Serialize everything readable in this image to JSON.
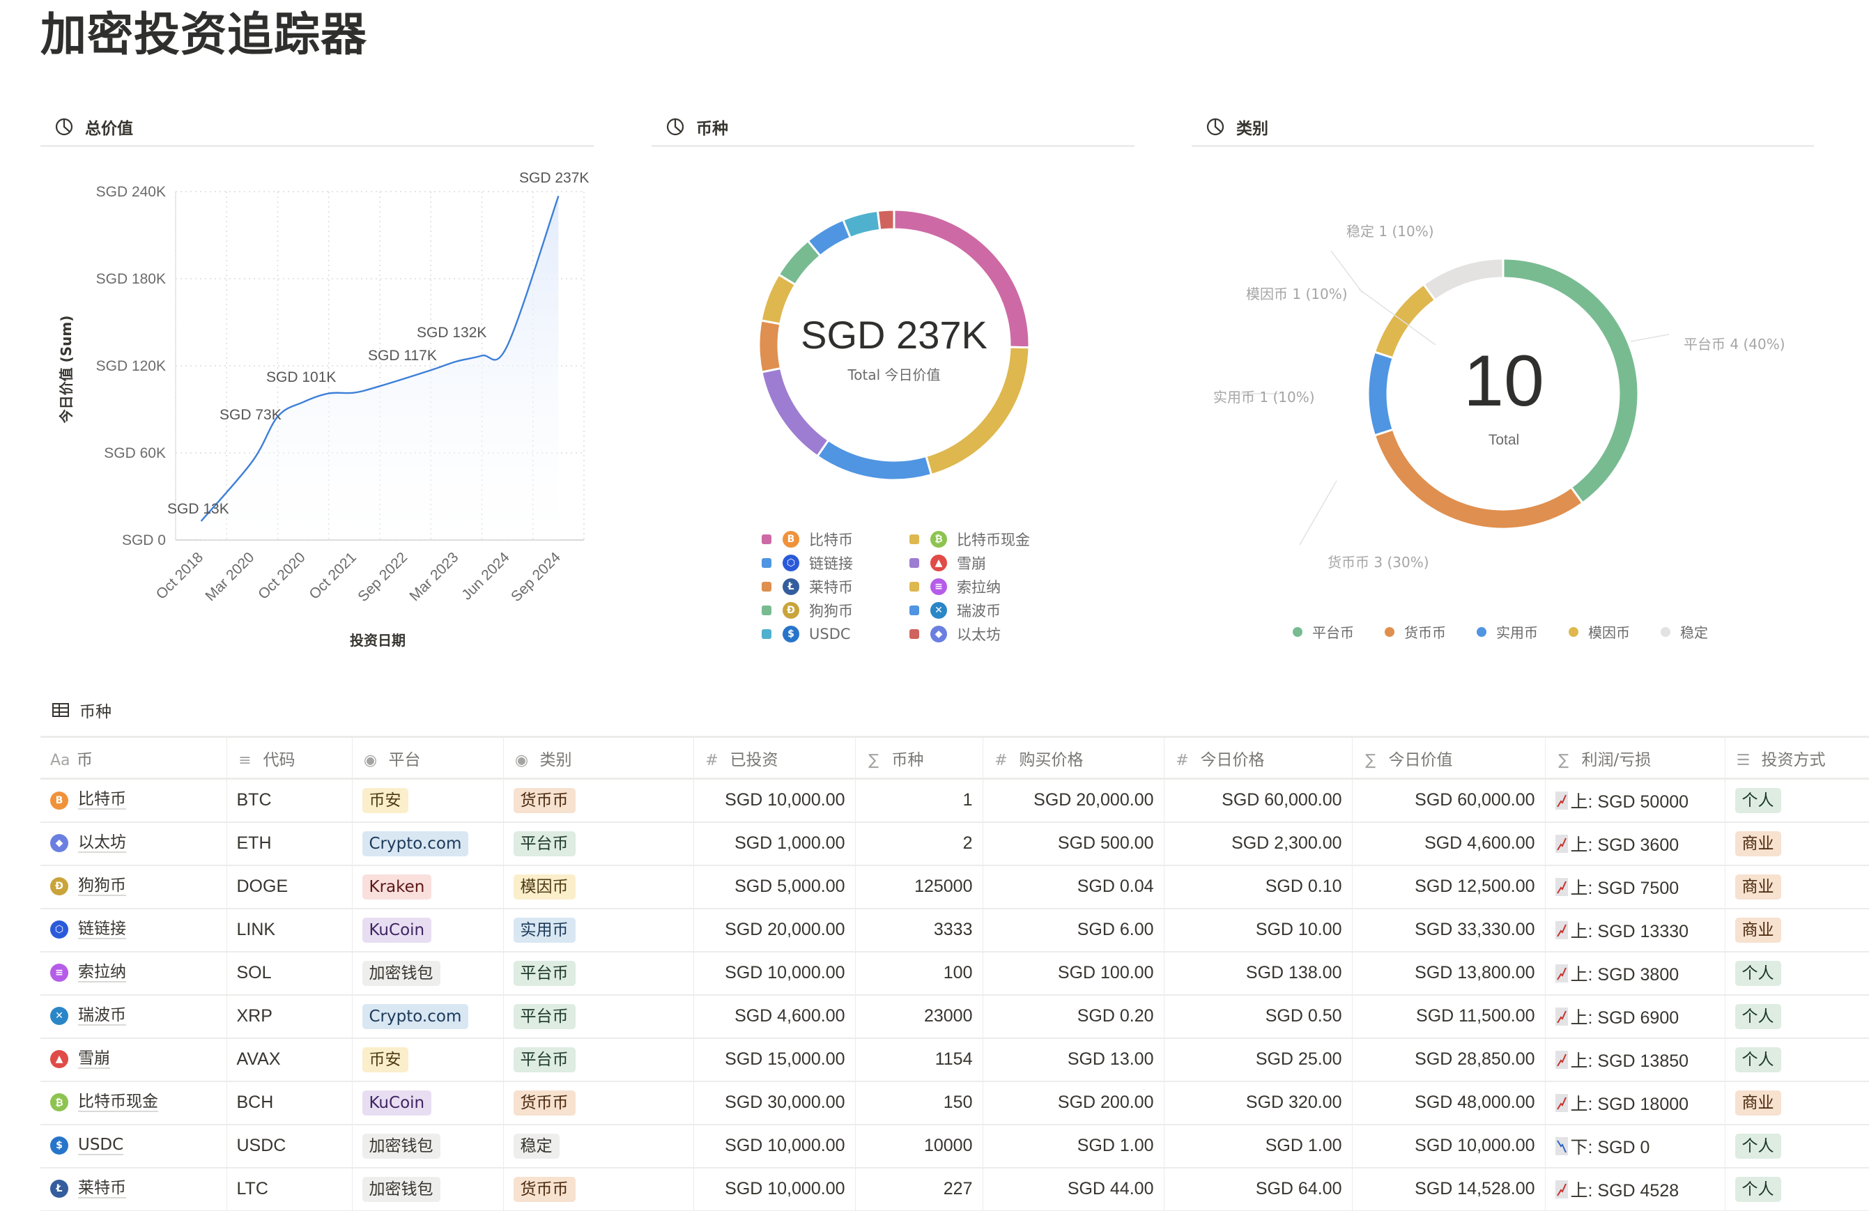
{
  "page": {
    "title": "加密投资追踪器"
  },
  "panels": {
    "total_value": {
      "title": "总价值"
    },
    "coins": {
      "title": "币种",
      "center_value": "SGD 237K",
      "center_label": "Total 今日价值"
    },
    "category": {
      "title": "类别",
      "center_value": "10",
      "center_label": "Total"
    }
  },
  "chart_data": [
    {
      "type": "area",
      "title": "总价值",
      "xlabel": "投资日期",
      "ylabel": "今日价值 (Sum)",
      "categories": [
        "Oct 2018",
        "Mar 2020",
        "Oct 2020",
        "Oct 2021",
        "Sep 2022",
        "Mar 2023",
        "Jun 2024",
        "Sep 2024"
      ],
      "values": [
        13000,
        73000,
        101000,
        101000,
        117000,
        132000,
        132000,
        237000
      ],
      "point_labels": [
        "SGD 13K",
        "SGD 73K",
        "SGD 101K",
        "SGD 117K",
        "SGD 132K",
        "SGD 237K"
      ],
      "yticks": [
        "SGD 0",
        "SGD 60K",
        "SGD 120K",
        "SGD 180K",
        "SGD 240K"
      ],
      "ylim": [
        0,
        240000
      ],
      "grid": true,
      "line_color": "#3d7fd8"
    },
    {
      "type": "pie",
      "title": "币种",
      "donut": true,
      "total_label": "SGD 237K",
      "sub_label": "Total 今日价值",
      "slices": [
        {
          "label": "比特币",
          "value": 60000,
          "color": "#cd6aa5"
        },
        {
          "label": "比特币现金",
          "value": 48000,
          "color": "#deb74e"
        },
        {
          "label": "链链接",
          "value": 33330,
          "color": "#4f95e2"
        },
        {
          "label": "雪崩",
          "value": 28850,
          "color": "#9d7dd1"
        },
        {
          "label": "莱特币",
          "value": 14528,
          "color": "#df8f4f"
        },
        {
          "label": "索拉纳",
          "value": 13800,
          "color": "#deb74e"
        },
        {
          "label": "狗狗币",
          "value": 12500,
          "color": "#78bb91"
        },
        {
          "label": "瑞波币",
          "value": 11500,
          "color": "#4f95e2"
        },
        {
          "label": "USDC",
          "value": 10000,
          "color": "#4fb1ce"
        },
        {
          "label": "以太坊",
          "value": 4600,
          "color": "#d0635e"
        }
      ]
    },
    {
      "type": "pie",
      "title": "类别",
      "donut": true,
      "total_label": "10",
      "sub_label": "Total",
      "slices": [
        {
          "label": "平台币",
          "value": 4,
          "pct": "40%",
          "color": "#78bb91"
        },
        {
          "label": "货币币",
          "value": 3,
          "pct": "30%",
          "color": "#df8f4f"
        },
        {
          "label": "实用币",
          "value": 1,
          "pct": "10%",
          "color": "#4f95e2"
        },
        {
          "label": "模因币",
          "value": 1,
          "pct": "10%",
          "color": "#deb74e"
        },
        {
          "label": "稳定",
          "value": 1,
          "pct": "10%",
          "color": "#e3e2e0"
        }
      ],
      "slice_labels": [
        "平台币  4 (40%)",
        "货币币  3 (30%)",
        "实用币  1 (10%)",
        "模因币  1 (10%)",
        "稳定  1 (10%)"
      ]
    }
  ],
  "coin_legend": [
    {
      "label": "比特币",
      "color": "#cd6aa5",
      "icon_bg": "#f0923a",
      "glyph": "B"
    },
    {
      "label": "比特币现金",
      "color": "#deb74e",
      "icon_bg": "#8dc351",
      "glyph": "₿"
    },
    {
      "label": "链链接",
      "color": "#4f95e2",
      "icon_bg": "#2a5ada",
      "glyph": "⬡"
    },
    {
      "label": "雪崩",
      "color": "#9d7dd1",
      "icon_bg": "#e04a47",
      "glyph": "▲"
    },
    {
      "label": "莱特币",
      "color": "#df8f4f",
      "icon_bg": "#345d9d",
      "glyph": "Ł"
    },
    {
      "label": "索拉纳",
      "color": "#deb74e",
      "icon_bg": "#b55ce8",
      "glyph": "≡"
    },
    {
      "label": "狗狗币",
      "color": "#78bb91",
      "icon_bg": "#c9a43a",
      "glyph": "Ð"
    },
    {
      "label": "瑞波币",
      "color": "#4f95e2",
      "icon_bg": "#2b86c7",
      "glyph": "✕"
    },
    {
      "label": "USDC",
      "color": "#4fb1ce",
      "icon_bg": "#2775ca",
      "glyph": "$"
    },
    {
      "label": "以太坊",
      "color": "#d0635e",
      "icon_bg": "#6a7fe0",
      "glyph": "◆"
    }
  ],
  "category_legend": [
    {
      "label": "平台币",
      "color": "#78bb91"
    },
    {
      "label": "货币币",
      "color": "#df8f4f"
    },
    {
      "label": "实用币",
      "color": "#4f95e2"
    },
    {
      "label": "模因币",
      "color": "#deb74e"
    },
    {
      "label": "稳定",
      "color": "#e3e2e0"
    }
  ],
  "table": {
    "title": "币种",
    "columns": [
      {
        "icon": "Aa",
        "label": "币"
      },
      {
        "icon": "≡",
        "label": "代码"
      },
      {
        "icon": "◉",
        "label": "平台"
      },
      {
        "icon": "◉",
        "label": "类别"
      },
      {
        "icon": "#",
        "label": "已投资"
      },
      {
        "icon": "∑",
        "label": "币种"
      },
      {
        "icon": "#",
        "label": "购买价格"
      },
      {
        "icon": "#",
        "label": "今日价格"
      },
      {
        "icon": "∑",
        "label": "今日价值"
      },
      {
        "icon": "∑",
        "label": "利润/亏损"
      },
      {
        "icon": "☰",
        "label": "投资方式"
      }
    ],
    "rows": [
      {
        "name": "比特币",
        "icon_bg": "#f0923a",
        "glyph": "B",
        "code": "BTC",
        "platform": "币安",
        "category": "货币币",
        "invested": "SGD 10,000.00",
        "coins": "1",
        "buy": "SGD 20,000.00",
        "today": "SGD 60,000.00",
        "value": "SGD 60,000.00",
        "pl_dir": "up",
        "pl": "上: SGD 50000",
        "method": "个人"
      },
      {
        "name": "以太坊",
        "icon_bg": "#6a7fe0",
        "glyph": "◆",
        "code": "ETH",
        "platform": "Crypto.com",
        "category": "平台币",
        "invested": "SGD 1,000.00",
        "coins": "2",
        "buy": "SGD 500.00",
        "today": "SGD 2,300.00",
        "value": "SGD 4,600.00",
        "pl_dir": "up",
        "pl": "上: SGD 3600",
        "method": "商业"
      },
      {
        "name": "狗狗币",
        "icon_bg": "#c9a43a",
        "glyph": "Ð",
        "code": "DOGE",
        "platform": "Kraken",
        "category": "模因币",
        "invested": "SGD 5,000.00",
        "coins": "125000",
        "buy": "SGD 0.04",
        "today": "SGD 0.10",
        "value": "SGD 12,500.00",
        "pl_dir": "up",
        "pl": "上: SGD 7500",
        "method": "商业"
      },
      {
        "name": "链链接",
        "icon_bg": "#2a5ada",
        "glyph": "⬡",
        "code": "LINK",
        "platform": "KuCoin",
        "category": "实用币",
        "invested": "SGD 20,000.00",
        "coins": "3333",
        "buy": "SGD 6.00",
        "today": "SGD 10.00",
        "value": "SGD 33,330.00",
        "pl_dir": "up",
        "pl": "上: SGD 13330",
        "method": "商业"
      },
      {
        "name": "索拉纳",
        "icon_bg": "#b55ce8",
        "glyph": "≡",
        "code": "SOL",
        "platform": "加密钱包",
        "category": "平台币",
        "invested": "SGD 10,000.00",
        "coins": "100",
        "buy": "SGD 100.00",
        "today": "SGD 138.00",
        "value": "SGD 13,800.00",
        "pl_dir": "up",
        "pl": "上: SGD 3800",
        "method": "个人"
      },
      {
        "name": "瑞波币",
        "icon_bg": "#2b86c7",
        "glyph": "✕",
        "code": "XRP",
        "platform": "Crypto.com",
        "category": "平台币",
        "invested": "SGD 4,600.00",
        "coins": "23000",
        "buy": "SGD 0.20",
        "today": "SGD 0.50",
        "value": "SGD 11,500.00",
        "pl_dir": "up",
        "pl": "上: SGD 6900",
        "method": "个人"
      },
      {
        "name": "雪崩",
        "icon_bg": "#e04a47",
        "glyph": "▲",
        "code": "AVAX",
        "platform": "币安",
        "category": "平台币",
        "invested": "SGD 15,000.00",
        "coins": "1154",
        "buy": "SGD 13.00",
        "today": "SGD 25.00",
        "value": "SGD 28,850.00",
        "pl_dir": "up",
        "pl": "上: SGD 13850",
        "method": "个人"
      },
      {
        "name": "比特币现金",
        "icon_bg": "#8dc351",
        "glyph": "₿",
        "code": "BCH",
        "platform": "KuCoin",
        "category": "货币币",
        "invested": "SGD 30,000.00",
        "coins": "150",
        "buy": "SGD 200.00",
        "today": "SGD 320.00",
        "value": "SGD 48,000.00",
        "pl_dir": "up",
        "pl": "上: SGD 18000",
        "method": "商业"
      },
      {
        "name": "USDC",
        "icon_bg": "#2775ca",
        "glyph": "$",
        "code": "USDC",
        "platform": "加密钱包",
        "category": "稳定",
        "invested": "SGD 10,000.00",
        "coins": "10000",
        "buy": "SGD 1.00",
        "today": "SGD 1.00",
        "value": "SGD 10,000.00",
        "pl_dir": "down",
        "pl": "下: SGD 0",
        "method": "个人"
      },
      {
        "name": "莱特币",
        "icon_bg": "#345d9d",
        "glyph": "Ł",
        "code": "LTC",
        "platform": "加密钱包",
        "category": "货币币",
        "invested": "SGD 10,000.00",
        "coins": "227",
        "buy": "SGD 44.00",
        "today": "SGD 64.00",
        "value": "SGD 14,528.00",
        "pl_dir": "up",
        "pl": "上: SGD 4528",
        "method": "个人"
      }
    ]
  },
  "tag_colors": {
    "币安": [
      "#fbeecb",
      "#4d3a12"
    ],
    "Crypto.com": [
      "#d9e7f3",
      "#1c3a59"
    ],
    "Kraken": [
      "#f9e0dd",
      "#5d1715"
    ],
    "KuCoin": [
      "#e8def2",
      "#3f2462"
    ],
    "加密钱包": [
      "#eeeeed",
      "#37352f"
    ],
    "货币币": [
      "#f7e1cf",
      "#49290e"
    ],
    "平台币": [
      "#deece1",
      "#1c3829"
    ],
    "模因币": [
      "#fbeecb",
      "#4d3a12"
    ],
    "实用币": [
      "#d9e7f3",
      "#1c3a59"
    ],
    "稳定": [
      "#eeeeed",
      "#37352f"
    ],
    "个人": [
      "#deece1",
      "#1c3829"
    ],
    "商业": [
      "#f7e1cf",
      "#49290e"
    ]
  }
}
